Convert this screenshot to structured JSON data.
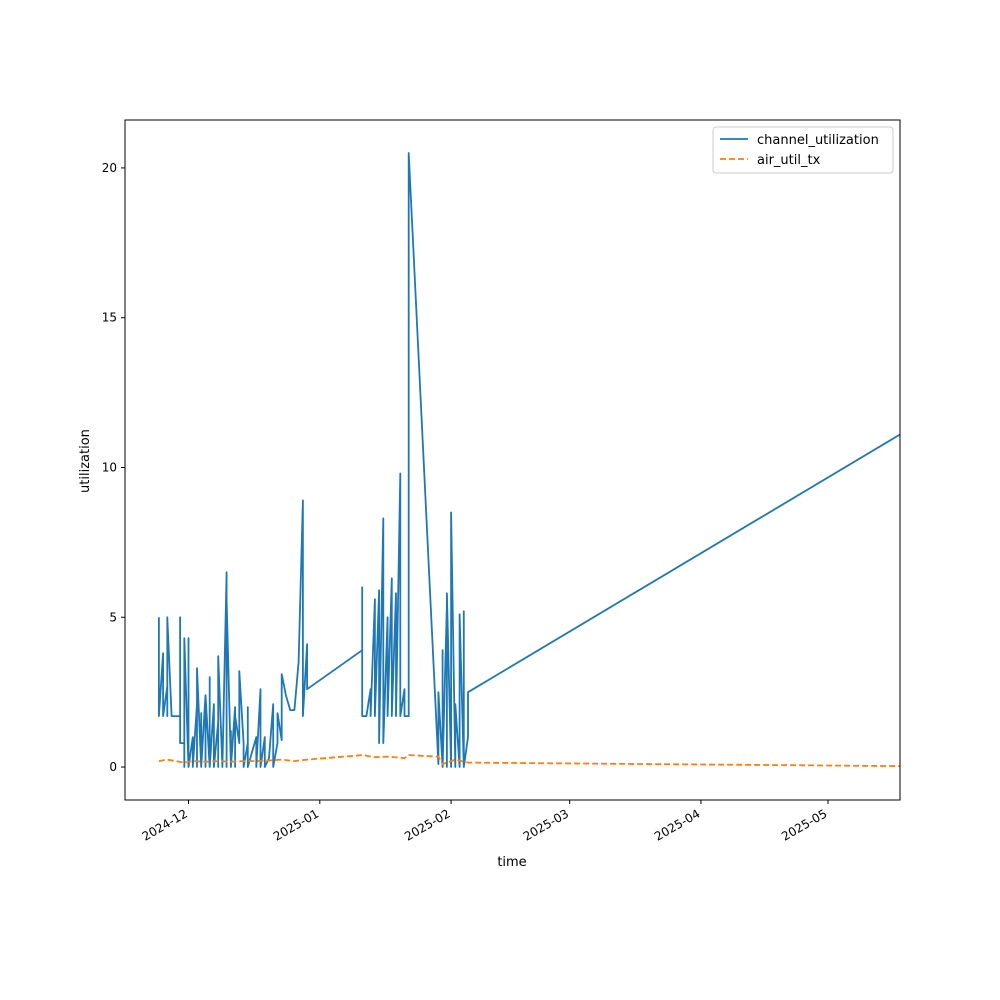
{
  "chart_data": {
    "type": "line",
    "xlabel": "time",
    "ylabel": "utilization",
    "x_ticks": [
      "2024-12",
      "2025-01",
      "2025-02",
      "2025-03",
      "2025-04",
      "2025-05"
    ],
    "y_ticks": [
      0,
      5,
      10,
      15,
      20
    ],
    "xlim": [
      "2024-11-16",
      "2025-05-18"
    ],
    "ylim": [
      -1.1,
      21.6
    ],
    "legend_position": "top-right",
    "grid": false,
    "series": [
      {
        "name": "channel_utilization",
        "color": "#1f77b4",
        "style": "solid",
        "points": [
          [
            "2024-11-24",
            5.0
          ],
          [
            "2024-11-24",
            1.7
          ],
          [
            "2024-11-25",
            3.8
          ],
          [
            "2024-11-25",
            1.7
          ],
          [
            "2024-11-26",
            2.7
          ],
          [
            "2024-11-26",
            1.7
          ],
          [
            "2024-11-26",
            5.0
          ],
          [
            "2024-11-27",
            1.7
          ],
          [
            "2024-11-28",
            1.7
          ],
          [
            "2024-11-29",
            1.7
          ],
          [
            "2024-11-29",
            5.0
          ],
          [
            "2024-11-29",
            0.8
          ],
          [
            "2024-11-30",
            0.8
          ],
          [
            "2024-11-30",
            0.0
          ],
          [
            "2024-11-30",
            4.3
          ],
          [
            "2024-12-01",
            0.0
          ],
          [
            "2024-12-01",
            4.3
          ],
          [
            "2024-12-01",
            0.0
          ],
          [
            "2024-12-02",
            1.0
          ],
          [
            "2024-12-02",
            0.0
          ],
          [
            "2024-12-03",
            2.1
          ],
          [
            "2024-12-03",
            0.0
          ],
          [
            "2024-12-03",
            3.3
          ],
          [
            "2024-12-04",
            0.0
          ],
          [
            "2024-12-04",
            1.8
          ],
          [
            "2024-12-04",
            0.0
          ],
          [
            "2024-12-05",
            2.4
          ],
          [
            "2024-12-05",
            0.0
          ],
          [
            "2024-12-05",
            2.4
          ],
          [
            "2024-12-06",
            0.0
          ],
          [
            "2024-12-06",
            3.0
          ],
          [
            "2024-12-06",
            0.0
          ],
          [
            "2024-12-07",
            2.1
          ],
          [
            "2024-12-07",
            0.0
          ],
          [
            "2024-12-08",
            1.5
          ],
          [
            "2024-12-08",
            0.0
          ],
          [
            "2024-12-08",
            3.7
          ],
          [
            "2024-12-09",
            0.0
          ],
          [
            "2024-12-09",
            0.9
          ],
          [
            "2024-12-09",
            0.0
          ],
          [
            "2024-12-10",
            6.5
          ],
          [
            "2024-12-10",
            0.0
          ],
          [
            "2024-12-10",
            5.6
          ],
          [
            "2024-12-11",
            0.0
          ],
          [
            "2024-12-11",
            1.2
          ],
          [
            "2024-12-11",
            0.0
          ],
          [
            "2024-12-12",
            2.0
          ],
          [
            "2024-12-12",
            0.0
          ],
          [
            "2024-12-12",
            1.7
          ],
          [
            "2024-12-13",
            0.8
          ],
          [
            "2024-12-13",
            3.2
          ],
          [
            "2024-12-14",
            0.8
          ],
          [
            "2024-12-14",
            0.0
          ],
          [
            "2024-12-15",
            0.8
          ],
          [
            "2024-12-15",
            2.0
          ],
          [
            "2024-12-15",
            0.0
          ],
          [
            "2024-12-16",
            0.5
          ],
          [
            "2024-12-17",
            1.0
          ],
          [
            "2024-12-17",
            0.0
          ],
          [
            "2024-12-18",
            2.6
          ],
          [
            "2024-12-18",
            0.0
          ],
          [
            "2024-12-19",
            1.0
          ],
          [
            "2024-12-19",
            0.0
          ],
          [
            "2024-12-20",
            0.3
          ],
          [
            "2024-12-21",
            2.1
          ],
          [
            "2024-12-21",
            0.0
          ],
          [
            "2024-12-22",
            0.8
          ],
          [
            "2024-12-22",
            1.8
          ],
          [
            "2024-12-23",
            0.9
          ],
          [
            "2024-12-23",
            3.1
          ],
          [
            "2024-12-24",
            2.4
          ],
          [
            "2024-12-25",
            1.9
          ],
          [
            "2024-12-26",
            1.9
          ],
          [
            "2024-12-27",
            3.5
          ],
          [
            "2024-12-28",
            8.9
          ],
          [
            "2024-12-28",
            1.7
          ],
          [
            "2024-12-29",
            4.1
          ],
          [
            "2024-12-29",
            2.6
          ],
          [
            "2025-01-11",
            3.9
          ],
          [
            "2025-01-11",
            6.0
          ],
          [
            "2025-01-11",
            1.7
          ],
          [
            "2025-01-12",
            1.7
          ],
          [
            "2025-01-13",
            2.6
          ],
          [
            "2025-01-13",
            1.7
          ],
          [
            "2025-01-14",
            5.6
          ],
          [
            "2025-01-14",
            1.7
          ],
          [
            "2025-01-15",
            5.9
          ],
          [
            "2025-01-15",
            0.8
          ],
          [
            "2025-01-16",
            8.3
          ],
          [
            "2025-01-16",
            0.8
          ],
          [
            "2025-01-17",
            5.0
          ],
          [
            "2025-01-17",
            1.7
          ],
          [
            "2025-01-18",
            6.3
          ],
          [
            "2025-01-18",
            1.7
          ],
          [
            "2025-01-19",
            5.8
          ],
          [
            "2025-01-19",
            1.7
          ],
          [
            "2025-01-20",
            9.8
          ],
          [
            "2025-01-20",
            1.7
          ],
          [
            "2025-01-21",
            2.6
          ],
          [
            "2025-01-21",
            1.7
          ],
          [
            "2025-01-22",
            1.7
          ],
          [
            "2025-01-22",
            20.5
          ],
          [
            "2025-01-29",
            0.1
          ],
          [
            "2025-01-29",
            2.5
          ],
          [
            "2025-01-30",
            0.0
          ],
          [
            "2025-01-30",
            3.9
          ],
          [
            "2025-01-30",
            0.0
          ],
          [
            "2025-01-31",
            5.4
          ],
          [
            "2025-01-31",
            0.0
          ],
          [
            "2025-01-31",
            5.8
          ],
          [
            "2025-02-01",
            0.0
          ],
          [
            "2025-02-01",
            8.5
          ],
          [
            "2025-02-02",
            0.0
          ],
          [
            "2025-02-02",
            2.1
          ],
          [
            "2025-02-03",
            0.0
          ],
          [
            "2025-02-03",
            5.1
          ],
          [
            "2025-02-04",
            0.0
          ],
          [
            "2025-02-04",
            5.2
          ],
          [
            "2025-02-04",
            0.0
          ],
          [
            "2025-02-05",
            1.0
          ],
          [
            "2025-02-05",
            2.5
          ],
          [
            "2025-05-18",
            11.1
          ]
        ]
      },
      {
        "name": "air_util_tx",
        "color": "#ff7f0e",
        "style": "dashed",
        "points": [
          [
            "2024-11-24",
            0.2
          ],
          [
            "2024-11-26",
            0.25
          ],
          [
            "2024-11-28",
            0.2
          ],
          [
            "2024-11-30",
            0.15
          ],
          [
            "2024-12-02",
            0.2
          ],
          [
            "2024-12-05",
            0.18
          ],
          [
            "2024-12-08",
            0.2
          ],
          [
            "2024-12-11",
            0.18
          ],
          [
            "2024-12-14",
            0.2
          ],
          [
            "2024-12-17",
            0.2
          ],
          [
            "2024-12-20",
            0.22
          ],
          [
            "2024-12-23",
            0.25
          ],
          [
            "2024-12-26",
            0.2
          ],
          [
            "2024-12-29",
            0.25
          ],
          [
            "2025-01-11",
            0.4
          ],
          [
            "2025-01-14",
            0.33
          ],
          [
            "2025-01-17",
            0.35
          ],
          [
            "2025-01-21",
            0.3
          ],
          [
            "2025-01-22",
            0.4
          ],
          [
            "2025-01-29",
            0.35
          ],
          [
            "2025-01-30",
            0.1
          ],
          [
            "2025-02-02",
            0.25
          ],
          [
            "2025-02-05",
            0.15
          ],
          [
            "2025-05-18",
            0.03
          ]
        ]
      }
    ]
  }
}
